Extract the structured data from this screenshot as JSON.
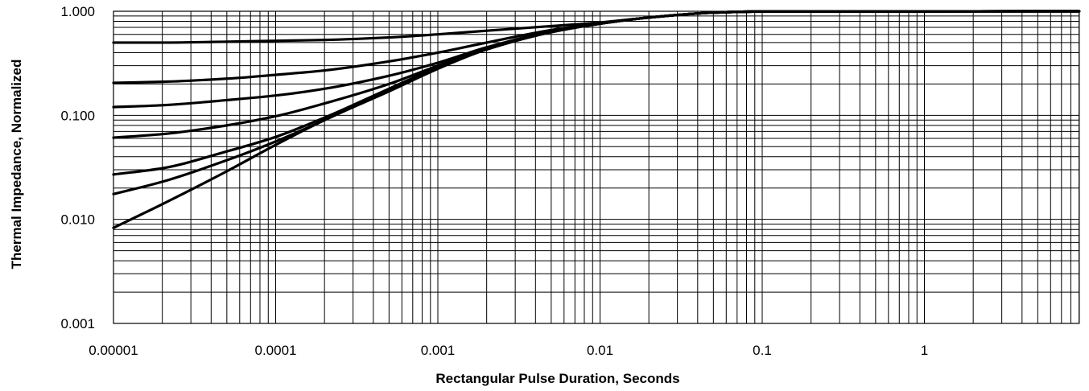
{
  "chart_data": {
    "type": "line",
    "title": "",
    "xlabel": "Rectangular Pulse Duration, Seconds",
    "ylabel": "Thermal Impedance, Normalized",
    "x_scale": "log",
    "y_scale": "log",
    "xlim": [
      1e-05,
      9
    ],
    "ylim": [
      0.001,
      1
    ],
    "grid": true,
    "legend": "none",
    "line_color": "#000000",
    "x_ticks": [
      {
        "value": 1e-05,
        "label": "0.00001"
      },
      {
        "value": 0.0001,
        "label": "0.0001"
      },
      {
        "value": 0.001,
        "label": "0.001"
      },
      {
        "value": 0.01,
        "label": "0.01"
      },
      {
        "value": 0.1,
        "label": "0.1"
      },
      {
        "value": 1,
        "label": "1"
      }
    ],
    "y_ticks": [
      {
        "value": 0.001,
        "label": "0.001"
      },
      {
        "value": 0.01,
        "label": "0.010"
      },
      {
        "value": 0.1,
        "label": "0.100"
      },
      {
        "value": 1,
        "label": "1.000"
      }
    ],
    "series": [
      {
        "x": [
          1e-05,
          2e-05,
          5e-05,
          0.0001,
          0.0002,
          0.0005,
          0.001,
          0.002,
          0.005,
          0.01,
          0.02,
          0.05,
          0.1,
          9
        ],
        "y": [
          0.5,
          0.5,
          0.51,
          0.52,
          0.53,
          0.56,
          0.6,
          0.65,
          0.72,
          0.78,
          0.87,
          0.97,
          0.995,
          1.0
        ]
      },
      {
        "x": [
          1e-05,
          2e-05,
          5e-05,
          0.0001,
          0.0002,
          0.0005,
          0.001,
          0.002,
          0.005,
          0.01,
          0.02,
          0.05,
          0.1,
          9
        ],
        "y": [
          0.205,
          0.21,
          0.225,
          0.245,
          0.27,
          0.33,
          0.4,
          0.5,
          0.66,
          0.77,
          0.87,
          0.97,
          0.995,
          1.0
        ]
      },
      {
        "x": [
          1e-05,
          2e-05,
          5e-05,
          0.0001,
          0.0002,
          0.0005,
          0.001,
          0.002,
          0.005,
          0.01,
          0.02,
          0.05,
          0.1,
          9
        ],
        "y": [
          0.12,
          0.125,
          0.14,
          0.155,
          0.18,
          0.24,
          0.32,
          0.45,
          0.64,
          0.76,
          0.87,
          0.97,
          0.995,
          1.0
        ]
      },
      {
        "x": [
          1e-05,
          2e-05,
          5e-05,
          0.0001,
          0.0002,
          0.0005,
          0.001,
          0.002,
          0.005,
          0.01,
          0.02,
          0.05,
          0.1,
          9
        ],
        "y": [
          0.061,
          0.066,
          0.08,
          0.098,
          0.13,
          0.2,
          0.3,
          0.44,
          0.64,
          0.76,
          0.87,
          0.97,
          0.995,
          1.0
        ]
      },
      {
        "x": [
          1e-05,
          2e-05,
          5e-05,
          0.0001,
          0.0002,
          0.0005,
          0.001,
          0.002,
          0.005,
          0.01,
          0.02,
          0.05,
          0.1,
          9
        ],
        "y": [
          0.027,
          0.031,
          0.045,
          0.062,
          0.095,
          0.18,
          0.29,
          0.43,
          0.63,
          0.76,
          0.87,
          0.97,
          0.995,
          1.0
        ]
      },
      {
        "x": [
          1e-05,
          2e-05,
          5e-05,
          0.0001,
          0.0002,
          0.0005,
          0.001,
          0.002,
          0.005,
          0.01,
          0.02,
          0.05,
          0.1,
          9
        ],
        "y": [
          0.0175,
          0.023,
          0.037,
          0.056,
          0.09,
          0.175,
          0.285,
          0.43,
          0.63,
          0.76,
          0.87,
          0.97,
          0.995,
          1.0
        ]
      },
      {
        "x": [
          1e-05,
          2e-05,
          5e-05,
          0.0001,
          0.0002,
          0.0005,
          0.001,
          0.002,
          0.005,
          0.01,
          0.02,
          0.05,
          0.1,
          9
        ],
        "y": [
          0.0083,
          0.014,
          0.029,
          0.052,
          0.09,
          0.17,
          0.28,
          0.43,
          0.63,
          0.76,
          0.87,
          0.97,
          0.995,
          1.0
        ]
      }
    ]
  }
}
